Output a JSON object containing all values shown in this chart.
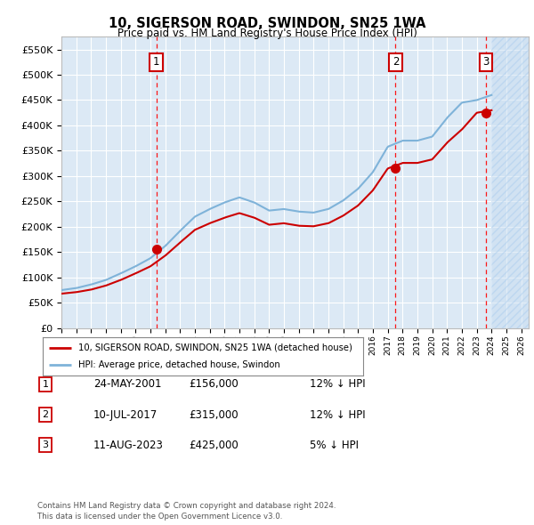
{
  "title": "10, SIGERSON ROAD, SWINDON, SN25 1WA",
  "subtitle": "Price paid vs. HM Land Registry's House Price Index (HPI)",
  "ylim": [
    0,
    575000
  ],
  "yticks": [
    0,
    50000,
    100000,
    150000,
    200000,
    250000,
    300000,
    350000,
    400000,
    450000,
    500000,
    550000
  ],
  "ytick_labels": [
    "£0",
    "£50K",
    "£100K",
    "£150K",
    "£200K",
    "£250K",
    "£300K",
    "£350K",
    "£400K",
    "£450K",
    "£500K",
    "£550K"
  ],
  "background_color": "#ffffff",
  "plot_bg_color": "#dce9f5",
  "grid_color": "#ffffff",
  "sale_points": [
    {
      "date_num": 2001.39,
      "price": 156000,
      "label": "1"
    },
    {
      "date_num": 2017.53,
      "price": 315000,
      "label": "2"
    },
    {
      "date_num": 2023.62,
      "price": 425000,
      "label": "3"
    }
  ],
  "vline_dates": [
    2001.39,
    2017.53,
    2023.62
  ],
  "red_line_color": "#cc0000",
  "blue_line_color": "#7fb3d9",
  "legend_entries": [
    {
      "label": "10, SIGERSON ROAD, SWINDON, SN25 1WA (detached house)",
      "color": "#cc0000"
    },
    {
      "label": "HPI: Average price, detached house, Swindon",
      "color": "#7fb3d9"
    }
  ],
  "table_rows": [
    {
      "num": "1",
      "date": "24-MAY-2001",
      "price": "£156,000",
      "hpi": "12% ↓ HPI"
    },
    {
      "num": "2",
      "date": "10-JUL-2017",
      "price": "£315,000",
      "hpi": "12% ↓ HPI"
    },
    {
      "num": "3",
      "date": "11-AUG-2023",
      "price": "£425,000",
      "hpi": "5% ↓ HPI"
    }
  ],
  "footnote": "Contains HM Land Registry data © Crown copyright and database right 2024.\nThis data is licensed under the Open Government Licence v3.0.",
  "hatch_region_start": 2024.0,
  "xmin": 1995.0,
  "xmax": 2026.5,
  "hpi_data": {
    "years": [
      1995,
      1996,
      1997,
      1998,
      1999,
      2000,
      2001,
      2002,
      2003,
      2004,
      2005,
      2006,
      2007,
      2008,
      2009,
      2010,
      2011,
      2012,
      2013,
      2014,
      2015,
      2016,
      2017,
      2018,
      2019,
      2020,
      2021,
      2022,
      2023,
      2024
    ],
    "values": [
      75000,
      79000,
      86000,
      95000,
      108000,
      122000,
      138000,
      162000,
      192000,
      220000,
      235000,
      248000,
      258000,
      248000,
      232000,
      235000,
      230000,
      228000,
      235000,
      252000,
      275000,
      308000,
      358000,
      370000,
      370000,
      378000,
      415000,
      445000,
      450000,
      460000
    ]
  },
  "prop_data": {
    "years": [
      1995,
      1996,
      1997,
      1998,
      1999,
      2000,
      2001,
      2002,
      2003,
      2004,
      2005,
      2006,
      2007,
      2008,
      2009,
      2010,
      2011,
      2012,
      2013,
      2014,
      2015,
      2016,
      2017,
      2018,
      2019,
      2020,
      2021,
      2022,
      2023,
      2024
    ],
    "values": [
      68000,
      71000,
      76000,
      84000,
      95000,
      108000,
      122000,
      143000,
      169000,
      194000,
      207000,
      218000,
      227000,
      218000,
      204000,
      207000,
      202000,
      201000,
      207000,
      222000,
      242000,
      272000,
      315000,
      326000,
      326000,
      333000,
      366000,
      392000,
      425000,
      430000
    ]
  }
}
